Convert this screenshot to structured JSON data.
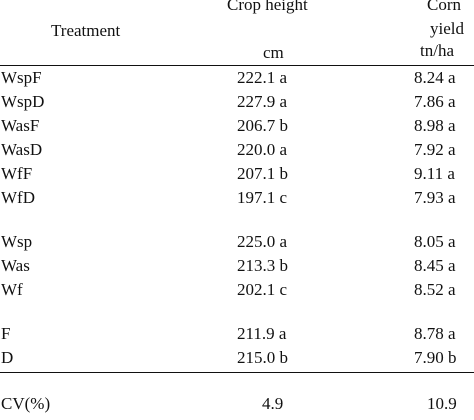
{
  "header": {
    "treatment": "Treatment",
    "crop_height": "Crop height",
    "crop_height_unit": "cm",
    "corn_yield_line1": "Corn",
    "corn_yield_line2": "yield",
    "corn_yield_unit": "tn/ha"
  },
  "rows": [
    {
      "label": "WspF",
      "height": "222.1 a",
      "yield": "8.24 a"
    },
    {
      "label": "WspD",
      "height": "227.9 a",
      "yield": "7.86 a"
    },
    {
      "label": "WasF",
      "height": "206.7 b",
      "yield": "8.98 a"
    },
    {
      "label": "WasD",
      "height": "220.0 a",
      "yield": "7.92 a"
    },
    {
      "label": "WfF",
      "height": "207.1 b",
      "yield": "9.11 a"
    },
    {
      "label": "WfD",
      "height": "197.1 c",
      "yield": "7.93 a"
    },
    {
      "label": "Wsp",
      "height": "225.0 a",
      "yield": "8.05 a"
    },
    {
      "label": "Was",
      "height": "213.3 b",
      "yield": "8.45 a"
    },
    {
      "label": "Wf",
      "height": "202.1 c",
      "yield": "8.52 a"
    },
    {
      "label": "F",
      "height": "211.9 a",
      "yield": "8.78 a"
    },
    {
      "label": "D",
      "height": "215.0 b",
      "yield": "7.90 b"
    }
  ],
  "cv": {
    "label": "CV(%)",
    "height": "4.9",
    "yield": "10.9"
  }
}
